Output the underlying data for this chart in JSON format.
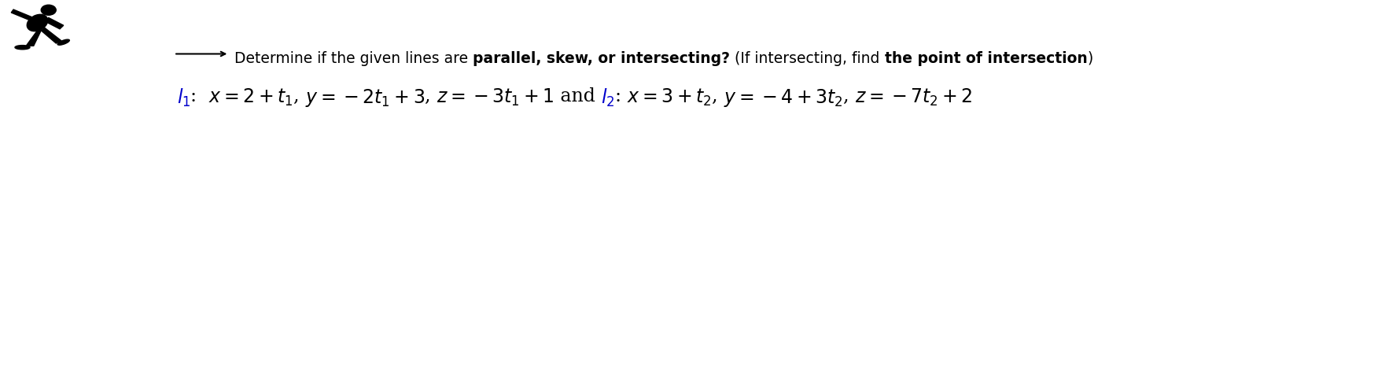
{
  "background_color": "#ffffff",
  "text_color": "#000000",
  "blue_color": "#0000cc",
  "title_fontsize": 13.5,
  "math_fontsize": 17,
  "fig_width": 17.66,
  "fig_height": 4.88,
  "dpi": 100,
  "line1_parts": [
    {
      "text": "Determine if the given lines are ",
      "bold": false
    },
    {
      "text": "parallel, skew, or intersecting?",
      "bold": true
    },
    {
      "text": " (If intersecting, find ",
      "bold": false
    },
    {
      "text": "the point of intersection",
      "bold": true
    },
    {
      "text": ")",
      "bold": false
    }
  ],
  "line2_pieces": [
    {
      "text": "$l_1$",
      "color": "#0000cc",
      "math": true
    },
    {
      "text": ":  ",
      "color": "#000000",
      "math": false
    },
    {
      "text": "$x = 2+t_1$",
      "color": "#000000",
      "math": true
    },
    {
      "text": ", ",
      "color": "#000000",
      "math": false
    },
    {
      "text": "$y = -2t_1 +3$",
      "color": "#000000",
      "math": true
    },
    {
      "text": ", ",
      "color": "#000000",
      "math": false
    },
    {
      "text": "$z = -3t_1 +1$",
      "color": "#000000",
      "math": true
    },
    {
      "text": " and ",
      "color": "#000000",
      "math": false
    },
    {
      "text": "$l_2$",
      "color": "#0000cc",
      "math": true
    },
    {
      "text": ": ",
      "color": "#000000",
      "math": false
    },
    {
      "text": "$x = 3+t_2$",
      "color": "#000000",
      "math": true
    },
    {
      "text": ", ",
      "color": "#000000",
      "math": false
    },
    {
      "text": "$y = -4+3t_2$",
      "color": "#000000",
      "math": true
    },
    {
      "text": ", ",
      "color": "#000000",
      "math": false
    },
    {
      "text": "$z = -7t_2 +2$",
      "color": "#000000",
      "math": true
    }
  ]
}
